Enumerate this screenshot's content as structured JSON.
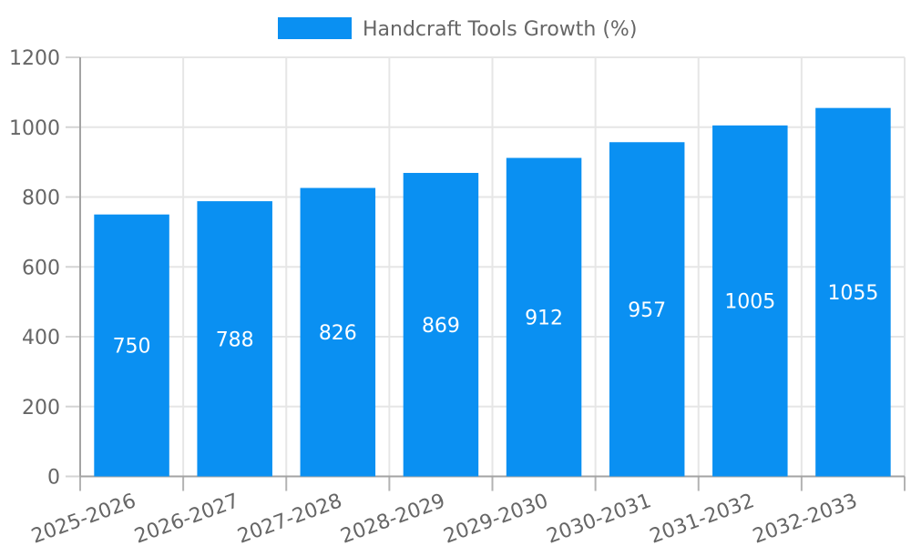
{
  "legend": {
    "label": "Handcraft Tools Growth (%)"
  },
  "colors": {
    "bar": "#0a90f2",
    "grid": "#e6e6e6",
    "axis": "#a3a3a3",
    "tick_y": "#d4d4d4",
    "tick_x": "#b3b3b3",
    "text": "#666666",
    "bar_label": "#ffffff",
    "background": "#ffffff"
  },
  "chart_data": {
    "type": "bar",
    "title": "Handcraft Tools Growth (%)",
    "series_name": "Handcraft Tools Growth (%)",
    "categories": [
      "2025-2026",
      "2026-2027",
      "2027-2028",
      "2028-2029",
      "2029-2030",
      "2030-2031",
      "2031-2032",
      "2032-2033"
    ],
    "values": [
      750,
      788,
      826,
      869,
      912,
      957,
      1005,
      1055
    ],
    "bar_value_labels": [
      "750",
      "788",
      "826",
      "869",
      "912",
      "957",
      "1005",
      "1055"
    ],
    "xlabel": "",
    "ylabel": "",
    "ylim": [
      0,
      1200
    ],
    "yticks": [
      0,
      200,
      400,
      600,
      800,
      1000,
      1200
    ],
    "grid": true,
    "legend_position": "top-center",
    "value_label_position": "inside-center",
    "x_tick_rotation_deg": -20
  }
}
